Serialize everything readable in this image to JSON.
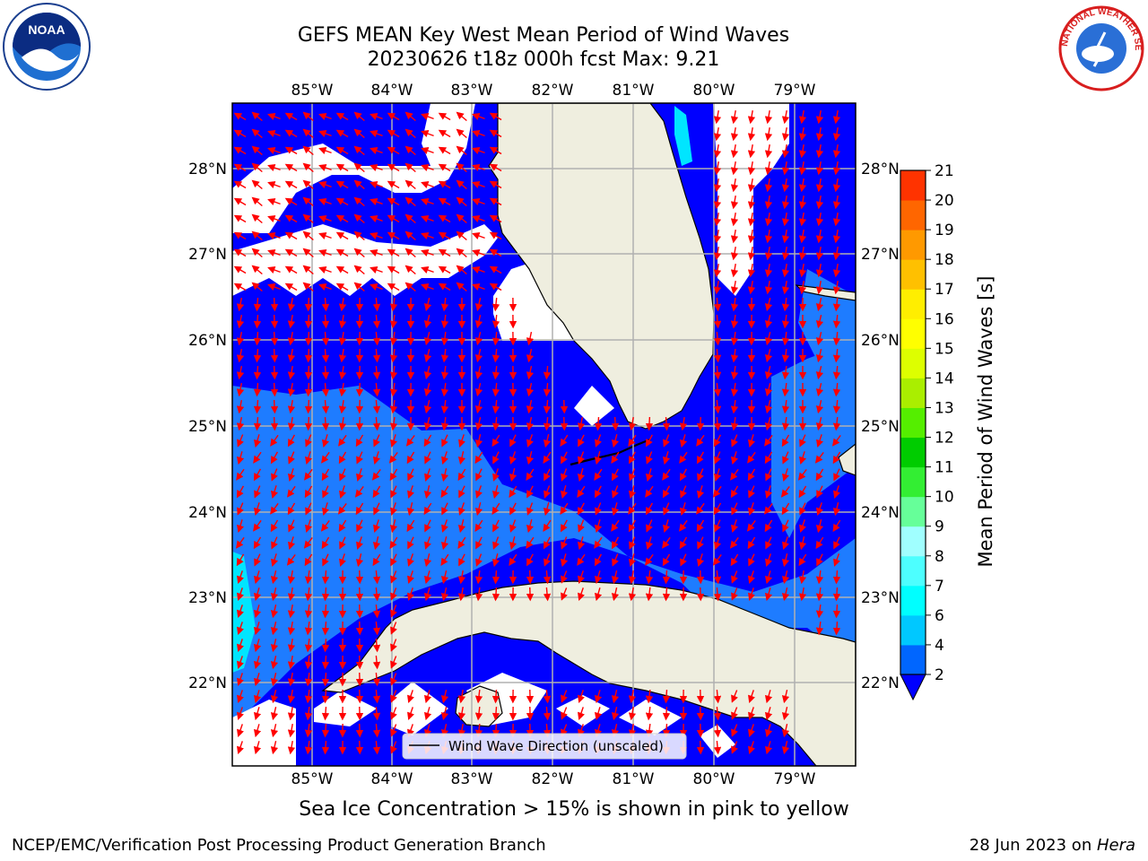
{
  "header": {
    "title_line1": "GEFS MEAN Key West Mean Period of Wind Waves",
    "title_line2": "20230626 t18z 000h fcst   Max: 9.21"
  },
  "logos": {
    "left": "NOAA",
    "right": "NATIONAL WEATHER SERVICE"
  },
  "map": {
    "lon_labels": [
      "85°W",
      "84°W",
      "83°W",
      "82°W",
      "81°W",
      "80°W",
      "79°W"
    ],
    "lat_labels": [
      "28°N",
      "27°N",
      "26°N",
      "25°N",
      "24°N",
      "23°N",
      "22°N"
    ],
    "legend_label": "Wind Wave Direction (unscaled)",
    "colors": {
      "land": "#efeedf",
      "period_2_4": "#0000ff",
      "period_4_6_blue": "#1e7cff",
      "period_6_8": "#00e5ff",
      "arrow": "#ff0000",
      "grid": "#b0b0b0"
    }
  },
  "colorbar": {
    "label": "Mean Period of Wind Waves [s]",
    "ticks": [
      "2",
      "4",
      "6",
      "7",
      "8",
      "9",
      "10",
      "11",
      "12",
      "13",
      "14",
      "15",
      "16",
      "17",
      "18",
      "19",
      "20",
      "21"
    ],
    "colors": [
      "#0066ff",
      "#00c8ff",
      "#00ffff",
      "#4dffff",
      "#a0ffff",
      "#66ff99",
      "#33ee33",
      "#00cc00",
      "#55ee00",
      "#aaee00",
      "#ddff00",
      "#ffff00",
      "#ffee00",
      "#ffc000",
      "#ff9900",
      "#ff6600",
      "#ff3300",
      "#ff0000"
    ]
  },
  "footer": {
    "subcaption": "Sea Ice Concentration > 15% is shown in pink to yellow",
    "credit": "NCEP/EMC/Verification Post Processing Product Generation Branch",
    "date_text": "28 Jun 2023 on ",
    "host": "Hera"
  }
}
